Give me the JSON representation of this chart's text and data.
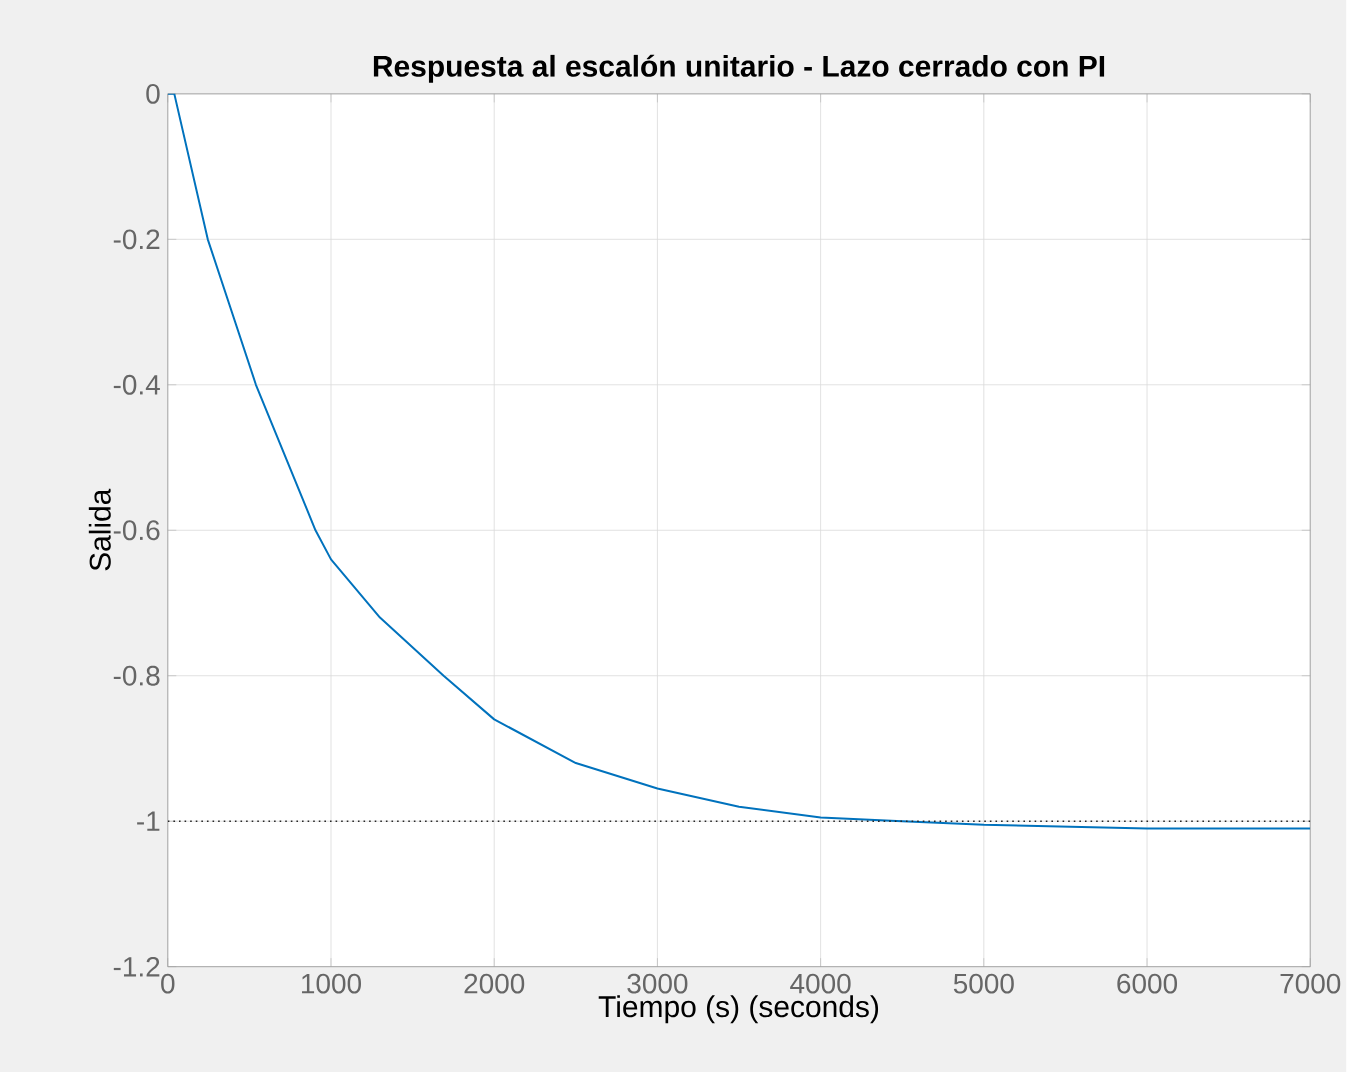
{
  "chart_data": {
    "type": "line",
    "title": "Respuesta al escalón unitario - Lazo cerrado con PI",
    "xlabel": "Tiempo (s) (seconds)",
    "ylabel": "Salida",
    "x": [
      0,
      40,
      245,
      540,
      905,
      1000,
      1300,
      1690,
      2000,
      2500,
      3000,
      3500,
      4000,
      4500,
      5000,
      6000,
      7000
    ],
    "series": [
      {
        "color": "#0072bd",
        "values": [
          0,
          0,
          -0.2,
          -0.4,
          -0.6,
          -0.64,
          -0.72,
          -0.8,
          -0.86,
          -0.92,
          -0.955,
          -0.98,
          -0.995,
          -1.0,
          -1.005,
          -1.01,
          -1.01
        ]
      }
    ],
    "xlim": [
      0,
      7000
    ],
    "ylim": [
      -1.2,
      0
    ],
    "xticks": [
      0,
      1000,
      2000,
      3000,
      4000,
      5000,
      6000,
      7000
    ],
    "yticks": [
      -1.2,
      -1,
      -0.8,
      -0.6,
      -0.4,
      -0.2,
      0
    ],
    "grid": true,
    "ref_lines": [
      {
        "axis": "y",
        "value": -1,
        "color": "#262626",
        "line_style": "dotted"
      }
    ]
  }
}
